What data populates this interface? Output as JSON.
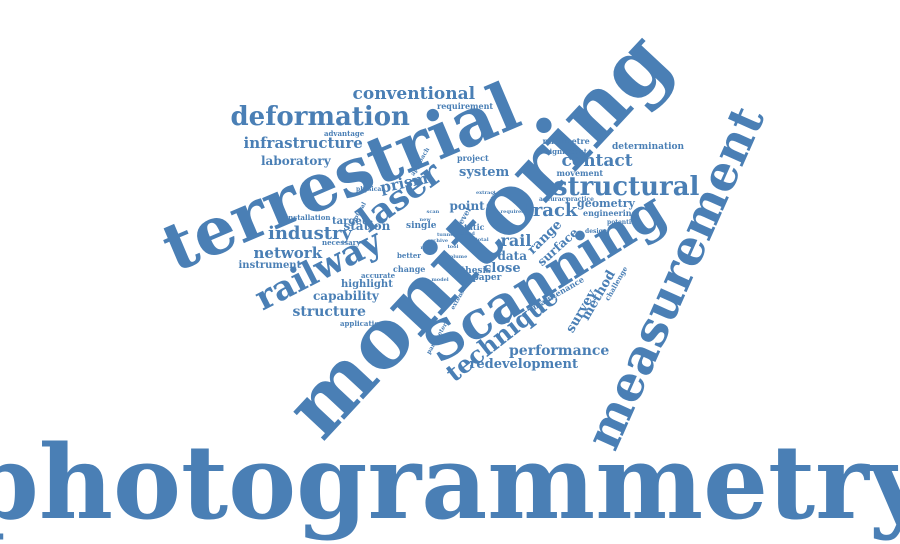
{
  "color": "#4a7fb5",
  "words": {
    "photogrammetry": "photogrammetry",
    "monitoring": "monitoring",
    "terrestrial": "terrestrial",
    "measurement": "measurement",
    "scanning": "Scanning",
    "laser": "laser",
    "railway": "railway",
    "structural": "structural",
    "deformation": "deformation",
    "technique": "technique",
    "conventional": "conventional",
    "infrastructure": "infrastructure",
    "industry": "industry",
    "network": "network",
    "track": "track",
    "rail": "rail",
    "contact": "contact",
    "performance": "performance",
    "redevelopment": "redevelopment",
    "structure": "structure",
    "capability": "capability",
    "survey": "survey",
    "method": "method",
    "station": "station",
    "laboratory": "laboratory",
    "prism": "prism",
    "system": "system",
    "data": "data",
    "close": "close",
    "range": "range",
    "surface": "surface",
    "point": "point",
    "geometry": "geometry",
    "engineering": "engineering",
    "instrument": "instrument",
    "highlight": "highlight",
    "target": "target",
    "determination": "determination",
    "requirement": "requirement",
    "millimetre": "millimetre",
    "significant": "significant",
    "movement": "movement",
    "maintenance": "maintenance",
    "challenge": "challenge",
    "application": "application",
    "installation": "installation",
    "advantage": "advantage",
    "necessary": "necessary",
    "accurate": "accurate",
    "change": "change",
    "single": "single",
    "static": "static",
    "paper": "paper",
    "thesis": "thesis",
    "level": "level",
    "project": "project",
    "better": "better",
    "physical": "physical",
    "optical": "optical",
    "approach": "approach",
    "accuracy": "accuracy",
    "practice": "practice",
    "design": "design",
    "potential": "potential",
    "requires": "requires",
    "cloud": "cloud",
    "extract": "extract",
    "result": "result",
    "archive": "archive",
    "parameter": "parameter",
    "extensive": "extensive",
    "volume": "volume",
    "tunnel": "tunnel",
    "total": "total",
    "scan": "scan",
    "model": "model",
    "tool": "tool",
    "real": "real",
    "new": "new"
  }
}
